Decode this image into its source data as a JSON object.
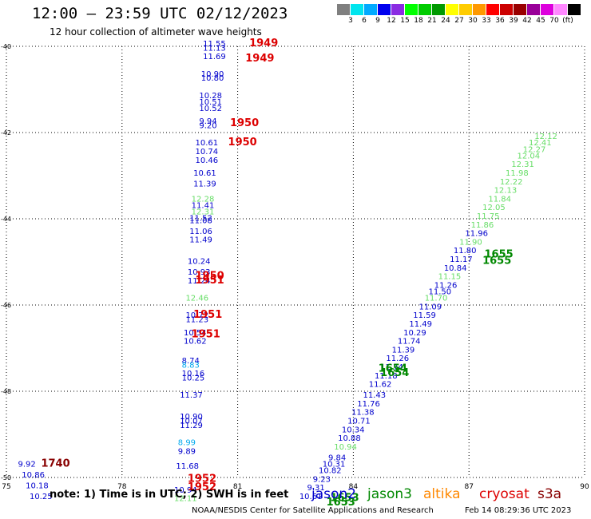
{
  "header": {
    "title": "12:00 – 23:59 UTC 02/12/2023",
    "subtitle": "12 hour collection of altimeter wave heights"
  },
  "color_scale": {
    "colors": [
      "#7f7f7f",
      "#00e5ee",
      "#00aaff",
      "#0000ee",
      "#8a2be2",
      "#00ff00",
      "#00cc00",
      "#009900",
      "#ffff00",
      "#ffcc00",
      "#ff9900",
      "#ff0000",
      "#cc0000",
      "#990000",
      "#990099",
      "#dd00dd",
      "#ff88ff",
      "#000000"
    ],
    "labels": [
      "3",
      "6",
      "9",
      "12",
      "15",
      "18",
      "21",
      "24",
      "27",
      "30",
      "33",
      "36",
      "39",
      "42",
      "45",
      "70",
      "(ft)"
    ]
  },
  "footer": {
    "note": "note:  1) Time is in UTC;  2) SWH is in feet",
    "credit": "NOAA/NESDIS Center for Satellite Applications and Research",
    "timestamp": "Feb 14 08:29:36 UTC 2023",
    "satellites": [
      {
        "name": "jason2",
        "color": "#0000cc"
      },
      {
        "name": "jason3",
        "color": "#008800"
      },
      {
        "name": "altika",
        "color": "#ff8800"
      },
      {
        "name": "cryosat",
        "color": "#dd0000"
      },
      {
        "name": "s3a",
        "color": "#880000"
      }
    ]
  },
  "chart_data": {
    "type": "scatter",
    "xlim": [
      75,
      90
    ],
    "ylim": [
      -50,
      -40
    ],
    "x_ticks": [
      "75",
      "78",
      "81",
      "84",
      "87",
      "90"
    ],
    "y_ticks": [
      "-40",
      "-42",
      "-44",
      "-46",
      "-48",
      "-50"
    ],
    "grid": true,
    "points": [
      {
        "x": 80.1,
        "y": -40.0,
        "v": "11.55",
        "c": "#0000cc"
      },
      {
        "x": 80.1,
        "y": -40.1,
        "v": "11.13",
        "c": "#0000cc"
      },
      {
        "x": 80.1,
        "y": -40.3,
        "v": "11.69",
        "c": "#0000cc"
      },
      {
        "x": 80.05,
        "y": -40.7,
        "v": "10.90",
        "c": "#0000cc"
      },
      {
        "x": 80.05,
        "y": -40.8,
        "v": "10.80",
        "c": "#0000cc"
      },
      {
        "x": 80.0,
        "y": -41.2,
        "v": "10.28",
        "c": "#0000cc"
      },
      {
        "x": 80.0,
        "y": -41.35,
        "v": "10.51",
        "c": "#0000cc"
      },
      {
        "x": 80.0,
        "y": -41.5,
        "v": "10.52",
        "c": "#0000cc"
      },
      {
        "x": 80.0,
        "y": -41.8,
        "v": "9.94",
        "c": "#0000cc"
      },
      {
        "x": 80.0,
        "y": -41.9,
        "v": "9.20",
        "c": "#0000cc"
      },
      {
        "x": 79.9,
        "y": -42.3,
        "v": "10.61",
        "c": "#0000cc"
      },
      {
        "x": 79.9,
        "y": -42.5,
        "v": "10.74",
        "c": "#0000cc"
      },
      {
        "x": 79.9,
        "y": -42.7,
        "v": "10.46",
        "c": "#0000cc"
      },
      {
        "x": 79.85,
        "y": -43.0,
        "v": "10.61",
        "c": "#0000cc"
      },
      {
        "x": 79.85,
        "y": -43.25,
        "v": "11.39",
        "c": "#0000cc"
      },
      {
        "x": 79.8,
        "y": -43.6,
        "v": "12.28",
        "c": "#66dd66"
      },
      {
        "x": 79.8,
        "y": -43.75,
        "v": "11.41",
        "c": "#0000cc"
      },
      {
        "x": 79.8,
        "y": -43.9,
        "v": "12.31",
        "c": "#66dd66"
      },
      {
        "x": 79.75,
        "y": -44.05,
        "v": "11.52",
        "c": "#0000cc"
      },
      {
        "x": 79.75,
        "y": -44.1,
        "v": "11.08",
        "c": "#0000cc"
      },
      {
        "x": 79.75,
        "y": -44.35,
        "v": "11.06",
        "c": "#0000cc"
      },
      {
        "x": 79.75,
        "y": -44.55,
        "v": "11.49",
        "c": "#0000cc"
      },
      {
        "x": 79.7,
        "y": -45.05,
        "v": "10.24",
        "c": "#0000cc"
      },
      {
        "x": 79.7,
        "y": -45.3,
        "v": "10.93",
        "c": "#0000cc"
      },
      {
        "x": 79.7,
        "y": -45.5,
        "v": "11.24",
        "c": "#0000cc"
      },
      {
        "x": 79.65,
        "y": -45.9,
        "v": "12.46",
        "c": "#66dd66"
      },
      {
        "x": 79.65,
        "y": -46.3,
        "v": "10.72",
        "c": "#0000cc"
      },
      {
        "x": 79.65,
        "y": -46.4,
        "v": "11.23",
        "c": "#0000cc"
      },
      {
        "x": 79.6,
        "y": -46.7,
        "v": "10.54",
        "c": "#0000cc"
      },
      {
        "x": 79.6,
        "y": -46.9,
        "v": "10.62",
        "c": "#0000cc"
      },
      {
        "x": 79.55,
        "y": -47.35,
        "v": "8.74",
        "c": "#0000cc"
      },
      {
        "x": 79.55,
        "y": -47.45,
        "v": "8.83",
        "c": "#00aaee"
      },
      {
        "x": 79.55,
        "y": -47.65,
        "v": "10.16",
        "c": "#0000cc"
      },
      {
        "x": 79.55,
        "y": -47.75,
        "v": "10.25",
        "c": "#0000cc"
      },
      {
        "x": 79.5,
        "y": -48.15,
        "v": "11.37",
        "c": "#0000cc"
      },
      {
        "x": 79.5,
        "y": -48.65,
        "v": "10.90",
        "c": "#0000cc"
      },
      {
        "x": 79.5,
        "y": -48.75,
        "v": "10.07",
        "c": "#0000cc"
      },
      {
        "x": 79.5,
        "y": -48.85,
        "v": "11.29",
        "c": "#0000cc"
      },
      {
        "x": 79.45,
        "y": -49.25,
        "v": "8.99",
        "c": "#00aaee"
      },
      {
        "x": 79.45,
        "y": -49.45,
        "v": "9.89",
        "c": "#0000cc"
      },
      {
        "x": 79.4,
        "y": -49.8,
        "v": "11.68",
        "c": "#0000cc"
      },
      {
        "x": 79.35,
        "y": -50.35,
        "v": "10.94",
        "c": "#0000cc"
      },
      {
        "x": 79.35,
        "y": -50.55,
        "v": "12.11",
        "c": "#66dd66"
      },
      {
        "x": 75.3,
        "y": -49.75,
        "v": "9.92",
        "c": "#0000cc"
      },
      {
        "x": 75.4,
        "y": -50.0,
        "v": "10.86",
        "c": "#0000cc"
      },
      {
        "x": 75.5,
        "y": -50.25,
        "v": "10.18",
        "c": "#0000cc"
      },
      {
        "x": 75.6,
        "y": -50.5,
        "v": "10.25",
        "c": "#0000cc"
      },
      {
        "x": 82.6,
        "y": -50.5,
        "v": "10.61",
        "c": "#0000cc"
      },
      {
        "x": 82.8,
        "y": -50.3,
        "v": "9.31",
        "c": "#0000cc"
      },
      {
        "x": 82.95,
        "y": -50.1,
        "v": "9.23",
        "c": "#0000cc"
      },
      {
        "x": 83.1,
        "y": -49.9,
        "v": "10.82",
        "c": "#0000cc"
      },
      {
        "x": 83.2,
        "y": -49.75,
        "v": "10.31",
        "c": "#0000cc"
      },
      {
        "x": 83.35,
        "y": -49.6,
        "v": "9.84",
        "c": "#0000cc"
      },
      {
        "x": 83.5,
        "y": -49.35,
        "v": "10.94",
        "c": "#66dd66"
      },
      {
        "x": 83.6,
        "y": -49.15,
        "v": "10.88",
        "c": "#0000cc"
      },
      {
        "x": 83.7,
        "y": -48.95,
        "v": "10.34",
        "c": "#0000cc"
      },
      {
        "x": 83.85,
        "y": -48.75,
        "v": "10.71",
        "c": "#0000cc"
      },
      {
        "x": 83.95,
        "y": -48.55,
        "v": "11.38",
        "c": "#0000cc"
      },
      {
        "x": 84.1,
        "y": -48.35,
        "v": "11.76",
        "c": "#0000cc"
      },
      {
        "x": 84.25,
        "y": -48.15,
        "v": "11.43",
        "c": "#0000cc"
      },
      {
        "x": 84.4,
        "y": -47.9,
        "v": "11.62",
        "c": "#0000cc"
      },
      {
        "x": 84.55,
        "y": -47.7,
        "v": "11.18",
        "c": "#0000cc"
      },
      {
        "x": 84.7,
        "y": -47.5,
        "v": "11.74",
        "c": "#0000cc"
      },
      {
        "x": 84.85,
        "y": -47.3,
        "v": "11.26",
        "c": "#0000cc"
      },
      {
        "x": 85.0,
        "y": -47.1,
        "v": "11.39",
        "c": "#0000cc"
      },
      {
        "x": 85.15,
        "y": -46.9,
        "v": "11.74",
        "c": "#0000cc"
      },
      {
        "x": 85.3,
        "y": -46.7,
        "v": "10.29",
        "c": "#0000cc"
      },
      {
        "x": 85.45,
        "y": -46.5,
        "v": "11.49",
        "c": "#0000cc"
      },
      {
        "x": 85.55,
        "y": -46.3,
        "v": "11.59",
        "c": "#0000cc"
      },
      {
        "x": 85.7,
        "y": -46.1,
        "v": "11.09",
        "c": "#0000cc"
      },
      {
        "x": 85.85,
        "y": -45.9,
        "v": "11.70",
        "c": "#66dd66"
      },
      {
        "x": 85.95,
        "y": -45.75,
        "v": "11.50",
        "c": "#0000cc"
      },
      {
        "x": 86.1,
        "y": -45.6,
        "v": "11.26",
        "c": "#0000cc"
      },
      {
        "x": 86.2,
        "y": -45.4,
        "v": "11.15",
        "c": "#66dd66"
      },
      {
        "x": 86.35,
        "y": -45.2,
        "v": "10.84",
        "c": "#0000cc"
      },
      {
        "x": 86.5,
        "y": -45.0,
        "v": "11.17",
        "c": "#0000cc"
      },
      {
        "x": 86.6,
        "y": -44.8,
        "v": "11.80",
        "c": "#0000cc"
      },
      {
        "x": 86.75,
        "y": -44.6,
        "v": "11.90",
        "c": "#66dd66"
      },
      {
        "x": 86.9,
        "y": -44.4,
        "v": "11.96",
        "c": "#0000cc"
      },
      {
        "x": 87.05,
        "y": -44.2,
        "v": "11.86",
        "c": "#66dd66"
      },
      {
        "x": 87.2,
        "y": -44.0,
        "v": "11.75",
        "c": "#66dd66"
      },
      {
        "x": 87.35,
        "y": -43.8,
        "v": "12.05",
        "c": "#66dd66"
      },
      {
        "x": 87.5,
        "y": -43.6,
        "v": "11.84",
        "c": "#66dd66"
      },
      {
        "x": 87.65,
        "y": -43.4,
        "v": "12.13",
        "c": "#66dd66"
      },
      {
        "x": 87.8,
        "y": -43.2,
        "v": "12.22",
        "c": "#66dd66"
      },
      {
        "x": 87.95,
        "y": -43.0,
        "v": "11.98",
        "c": "#66dd66"
      },
      {
        "x": 88.1,
        "y": -42.8,
        "v": "12.31",
        "c": "#66dd66"
      },
      {
        "x": 88.25,
        "y": -42.6,
        "v": "12.04",
        "c": "#66dd66"
      },
      {
        "x": 88.4,
        "y": -42.45,
        "v": "12.27",
        "c": "#66dd66"
      },
      {
        "x": 88.55,
        "y": -42.3,
        "v": "12.41",
        "c": "#66dd66"
      },
      {
        "x": 88.7,
        "y": -42.15,
        "v": "12.12",
        "c": "#66dd66"
      }
    ],
    "time_labels": [
      {
        "x": 81.3,
        "y": -40.0,
        "t": "1949",
        "c": "#dd0000"
      },
      {
        "x": 81.2,
        "y": -40.35,
        "t": "1949",
        "c": "#dd0000"
      },
      {
        "x": 80.8,
        "y": -41.85,
        "t": "1950",
        "c": "#dd0000"
      },
      {
        "x": 80.75,
        "y": -42.3,
        "t": "1950",
        "c": "#dd0000"
      },
      {
        "x": 79.9,
        "y": -45.4,
        "t": "1950",
        "c": "#dd0000"
      },
      {
        "x": 79.9,
        "y": -45.5,
        "t": "1951",
        "c": "#dd0000"
      },
      {
        "x": 79.85,
        "y": -46.3,
        "t": "1951",
        "c": "#dd0000"
      },
      {
        "x": 79.8,
        "y": -46.75,
        "t": "1951",
        "c": "#dd0000"
      },
      {
        "x": 79.7,
        "y": -50.1,
        "t": "1952",
        "c": "#dd0000"
      },
      {
        "x": 79.7,
        "y": -50.3,
        "t": "1952",
        "c": "#dd0000"
      },
      {
        "x": 75.9,
        "y": -49.75,
        "t": "1740",
        "c": "#880000"
      },
      {
        "x": 84.65,
        "y": -47.55,
        "t": "1654",
        "c": "#008800"
      },
      {
        "x": 84.7,
        "y": -47.65,
        "t": "1654",
        "c": "#008800"
      },
      {
        "x": 87.4,
        "y": -44.9,
        "t": "1655",
        "c": "#008800"
      },
      {
        "x": 87.35,
        "y": -45.05,
        "t": "1655",
        "c": "#008800"
      },
      {
        "x": 83.4,
        "y": -50.55,
        "t": "1653",
        "c": "#008800"
      },
      {
        "x": 83.3,
        "y": -50.65,
        "t": "1653",
        "c": "#008800"
      }
    ]
  }
}
